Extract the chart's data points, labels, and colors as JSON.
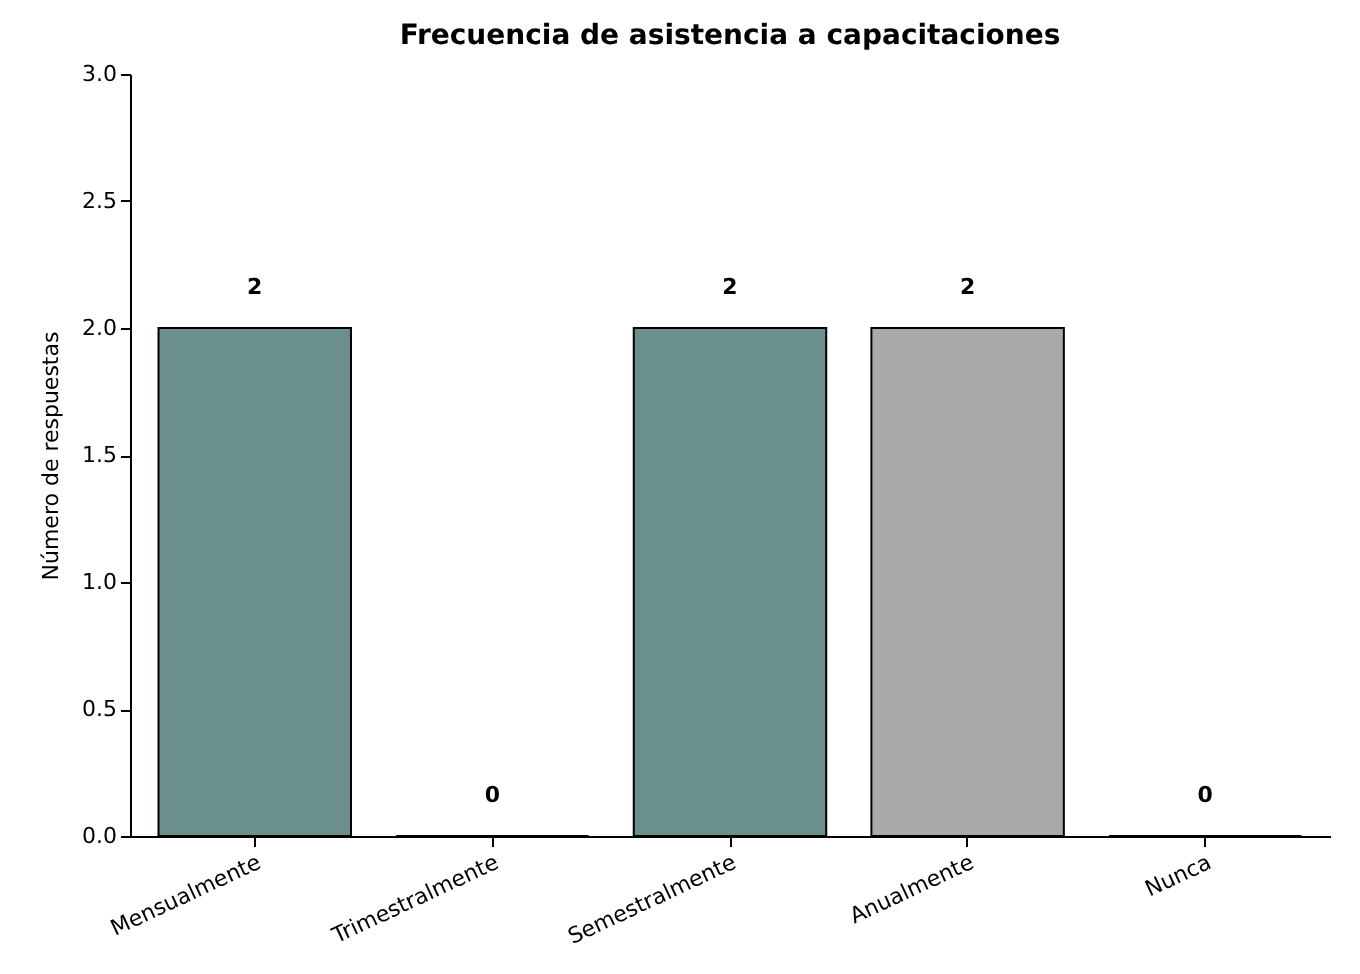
{
  "chart_data": {
    "type": "bar",
    "title": "Frecuencia de asistencia a capacitaciones",
    "ylabel": "Número de respuestas",
    "categories": [
      "Mensualmente",
      "Trimestralmente",
      "Semestralmente",
      "Anualmente",
      "Nunca"
    ],
    "values": [
      2,
      0,
      2,
      2,
      0
    ],
    "colors": [
      "#6a8f8c",
      "#6a8f8c",
      "#6a8f8c",
      "#a9a9a9",
      "#6a8f8c"
    ],
    "ylim": [
      0,
      3
    ],
    "yticks": [
      {
        "value": 0,
        "label": "0.0"
      },
      {
        "value": 0.5,
        "label": "0.5"
      },
      {
        "value": 1,
        "label": "1.0"
      },
      {
        "value": 1.5,
        "label": "1.5"
      },
      {
        "value": 2,
        "label": "2.0"
      },
      {
        "value": 2.5,
        "label": "2.5"
      },
      {
        "value": 3,
        "label": "3.0"
      }
    ],
    "data_labels": true
  }
}
